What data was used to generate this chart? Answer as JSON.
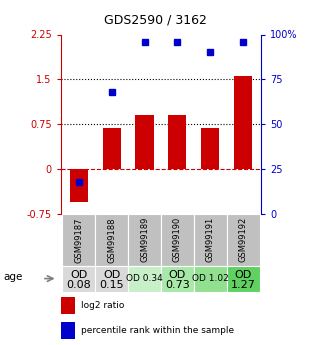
{
  "title": "GDS2590 / 3162",
  "samples": [
    "GSM99187",
    "GSM99188",
    "GSM99189",
    "GSM99190",
    "GSM99191",
    "GSM99192"
  ],
  "log2_ratio": [
    -0.55,
    0.68,
    0.9,
    0.9,
    0.68,
    1.55
  ],
  "percentile_rank": [
    18,
    68,
    96,
    96,
    90,
    96
  ],
  "ylim_left": [
    -0.75,
    2.25
  ],
  "ylim_right": [
    0,
    100
  ],
  "yticks_left": [
    -0.75,
    0,
    0.75,
    1.5,
    2.25
  ],
  "yticks_right": [
    0,
    25,
    50,
    75,
    100
  ],
  "bar_color": "#cc0000",
  "dot_color": "#0000cc",
  "zero_line_color": "#cc0000",
  "dotted_line_color": "#000000",
  "age_labels_top": [
    "OD",
    "OD",
    "OD 0.34",
    "OD",
    "OD 1.02",
    "OD"
  ],
  "age_labels_bot": [
    "0.08",
    "0.15",
    "",
    "0.73",
    "",
    "1.27"
  ],
  "age_bg_colors": [
    "#d9d9d9",
    "#d9d9d9",
    "#c8f0c8",
    "#a8e8a8",
    "#90e090",
    "#60d060"
  ],
  "age_font_sizes_top": [
    8,
    8,
    6.5,
    8,
    6.5,
    8
  ],
  "age_font_sizes_bot": [
    8,
    8,
    6.5,
    8,
    6.5,
    8
  ],
  "sample_bg_color": "#c0c0c0",
  "legend_labels": [
    "log2 ratio",
    "percentile rank within the sample"
  ]
}
